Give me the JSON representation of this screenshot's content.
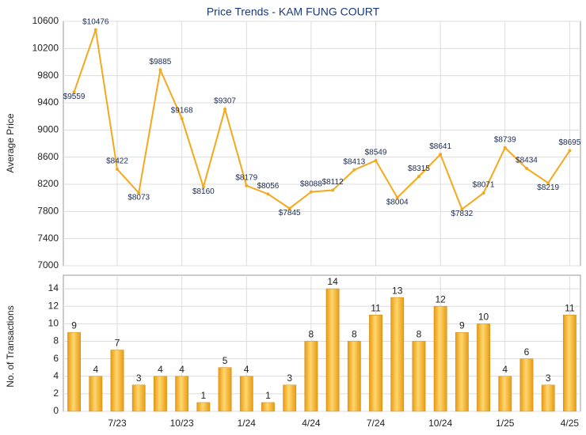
{
  "chart_data": [
    {
      "type": "line",
      "title": "Price Trends - KAM FUNG COURT",
      "y_label": "Average Price",
      "series": [
        {
          "name": "Average Price",
          "color": "#f5a81c",
          "values": [
            9559,
            10476,
            8422,
            8073,
            9885,
            9168,
            8160,
            9307,
            8179,
            8056,
            7845,
            8088,
            8112,
            8413,
            8549,
            8004,
            8315,
            8641,
            7832,
            8071,
            8739,
            8434,
            8219,
            8695
          ],
          "value_labels": [
            "$9559",
            "$10476",
            "$8422",
            "$8073",
            "$9885",
            "$9168",
            "$8160",
            "$9307",
            "$8179",
            "$8056",
            "$7845",
            "$8088",
            "$8112",
            "$8413",
            "$8549",
            "$8004",
            "$8315",
            "$8641",
            "$7832",
            "$8071",
            "$8739",
            "$8434",
            "$8219",
            "$8695"
          ]
        }
      ],
      "ylim": [
        7000,
        10600
      ],
      "yticks": [
        7000,
        7400,
        7800,
        8200,
        8600,
        9000,
        9400,
        9800,
        10200,
        10600
      ],
      "grid": true
    },
    {
      "type": "bar",
      "y_label": "No. of Transactions",
      "categories": [
        null,
        null,
        "7/23",
        null,
        null,
        "10/23",
        null,
        null,
        "1/24",
        null,
        null,
        "4/24",
        null,
        null,
        "7/24",
        null,
        null,
        "10/24",
        null,
        null,
        "1/25",
        null,
        null,
        "4/25"
      ],
      "series": [
        {
          "name": "No. of Transactions",
          "color": "#f5a81c",
          "values": [
            9,
            4,
            7,
            3,
            4,
            4,
            1,
            5,
            4,
            1,
            3,
            8,
            14,
            8,
            11,
            13,
            8,
            12,
            9,
            10,
            4,
            6,
            3,
            11
          ]
        }
      ],
      "ylim": [
        0,
        15
      ],
      "yticks": [
        0,
        2,
        4,
        6,
        8,
        10,
        12,
        14
      ],
      "grid": true
    }
  ]
}
